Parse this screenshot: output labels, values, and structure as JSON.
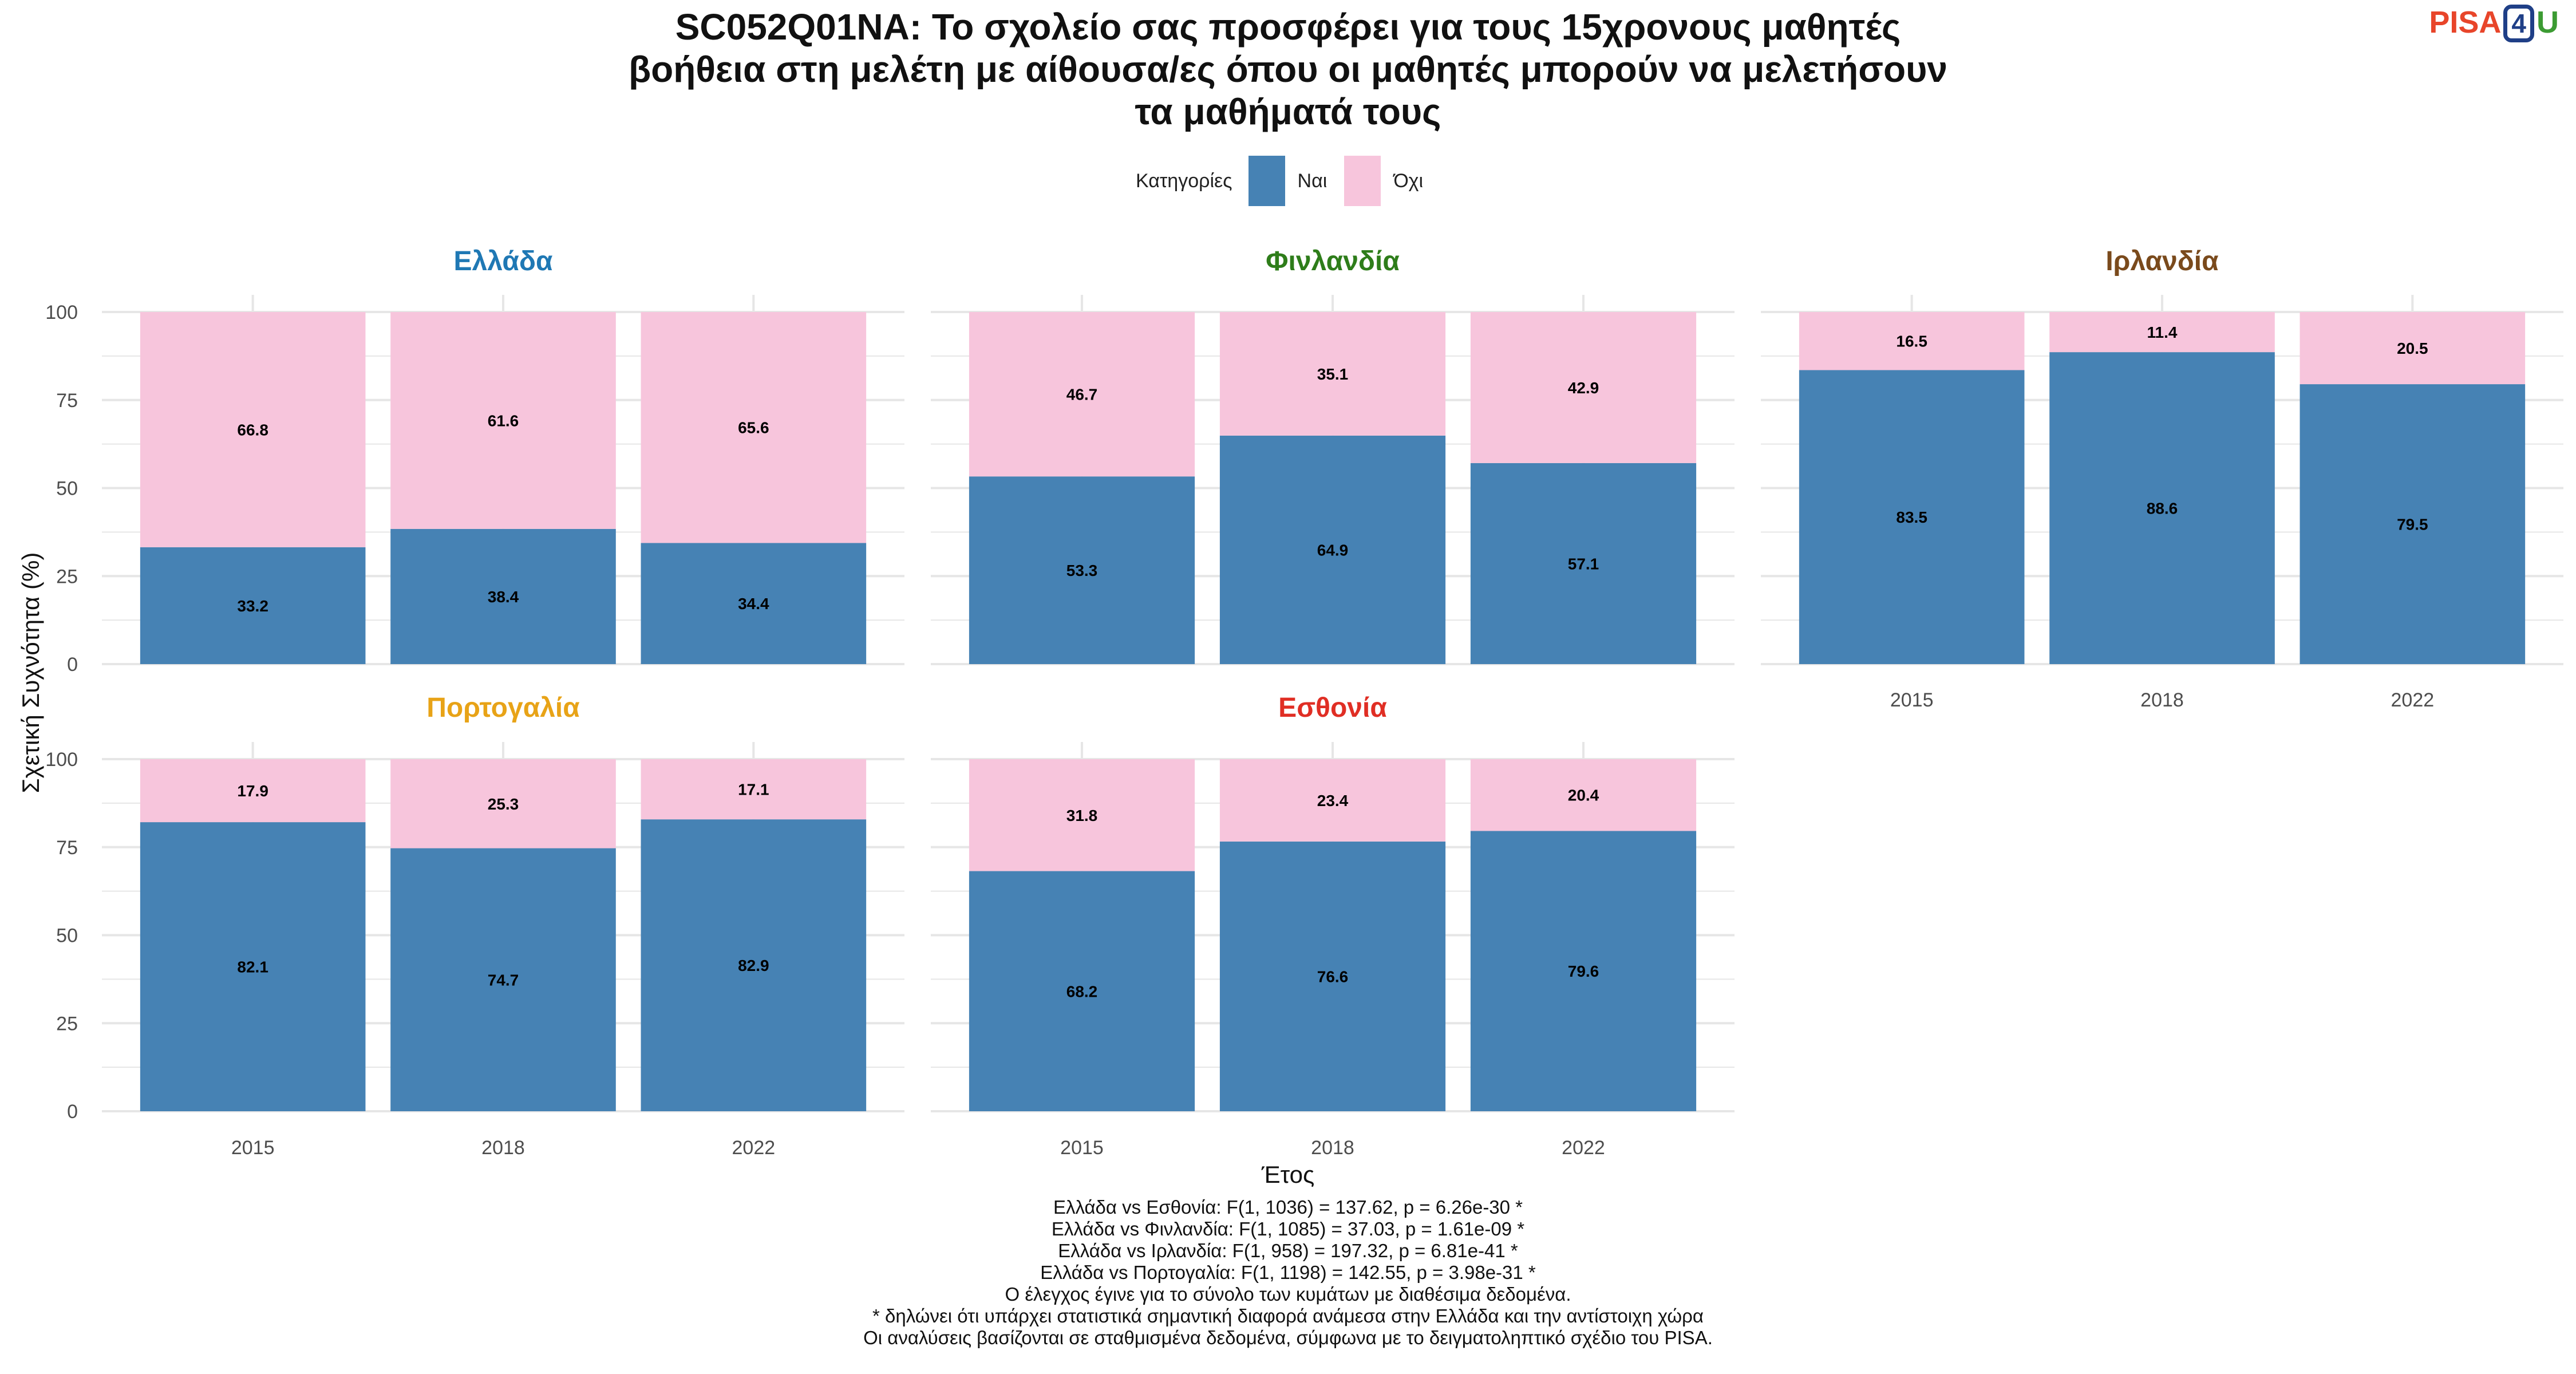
{
  "title_lines": [
    "SC052Q01NA: Το σχολείο σας προσφέρει για τους 15χρονους μαθητές",
    "βοήθεια στη μελέτη με αίθουσα/ες όπου οι μαθητές μπορούν να μελετήσουν",
    "τα μαθήματά τους"
  ],
  "logo": {
    "part1": "PISA",
    "part2": "4",
    "part3": "U"
  },
  "legend": {
    "title": "Κατηγορίες",
    "yes_label": "Ναι",
    "no_label": "Όχι"
  },
  "colors": {
    "yes": "#4682b4",
    "no": "#f7c5dc",
    "grid": "#e6e6e6",
    "label": "#000000",
    "tick": "#4d4d4d"
  },
  "chart_data": {
    "type": "bar",
    "stacked": true,
    "xlabel": "Έτος",
    "ylabel": "Σχετική Συχνότητα (%)",
    "ylim": [
      0,
      100
    ],
    "yticks": [
      0,
      25,
      50,
      75,
      100
    ],
    "categories": [
      "2015",
      "2018",
      "2022"
    ],
    "panels": [
      {
        "name": "Ελλάδα",
        "color": "#1f78b4",
        "yes": [
          33.2,
          38.4,
          34.4
        ],
        "no": [
          66.8,
          61.6,
          65.6
        ]
      },
      {
        "name": "Φινλανδία",
        "color": "#2e7d1a",
        "yes": [
          53.3,
          64.9,
          57.1
        ],
        "no": [
          46.7,
          35.1,
          42.9
        ]
      },
      {
        "name": "Ιρλανδία",
        "color": "#7a4a1c",
        "yes": [
          83.5,
          88.6,
          79.5
        ],
        "no": [
          16.5,
          11.4,
          20.5
        ]
      },
      {
        "name": "Πορτογαλία",
        "color": "#e8a317",
        "yes": [
          82.1,
          74.7,
          82.9
        ],
        "no": [
          17.9,
          25.3,
          17.1
        ]
      },
      {
        "name": "Εσθονία",
        "color": "#e02e24",
        "yes": [
          68.2,
          76.6,
          79.6
        ],
        "no": [
          31.8,
          23.4,
          20.4
        ]
      }
    ]
  },
  "notes": [
    "Ελλάδα vs Εσθονία: F(1, 1036) = 137.62, p = 6.26e-30 *",
    "Ελλάδα vs Φινλανδία: F(1, 1085) = 37.03, p = 1.61e-09 *",
    "Ελλάδα vs Ιρλανδία: F(1, 958) = 197.32, p = 6.81e-41 *",
    "Ελλάδα vs Πορτογαλία: F(1, 1198) = 142.55, p = 3.98e-31 *",
    "Ο έλεγχος έγινε για το σύνολο των κυμάτων με διαθέσιμα δεδομένα.",
    "* δηλώνει ότι υπάρχει στατιστικά σημαντική διαφορά ανάμεσα στην Ελλάδα και την αντίστοιχη χώρα",
    "Οι αναλύσεις βασίζονται σε σταθμισμένα δεδομένα, σύμφωνα με το δειγματοληπτικό σχέδιο του PISA."
  ]
}
